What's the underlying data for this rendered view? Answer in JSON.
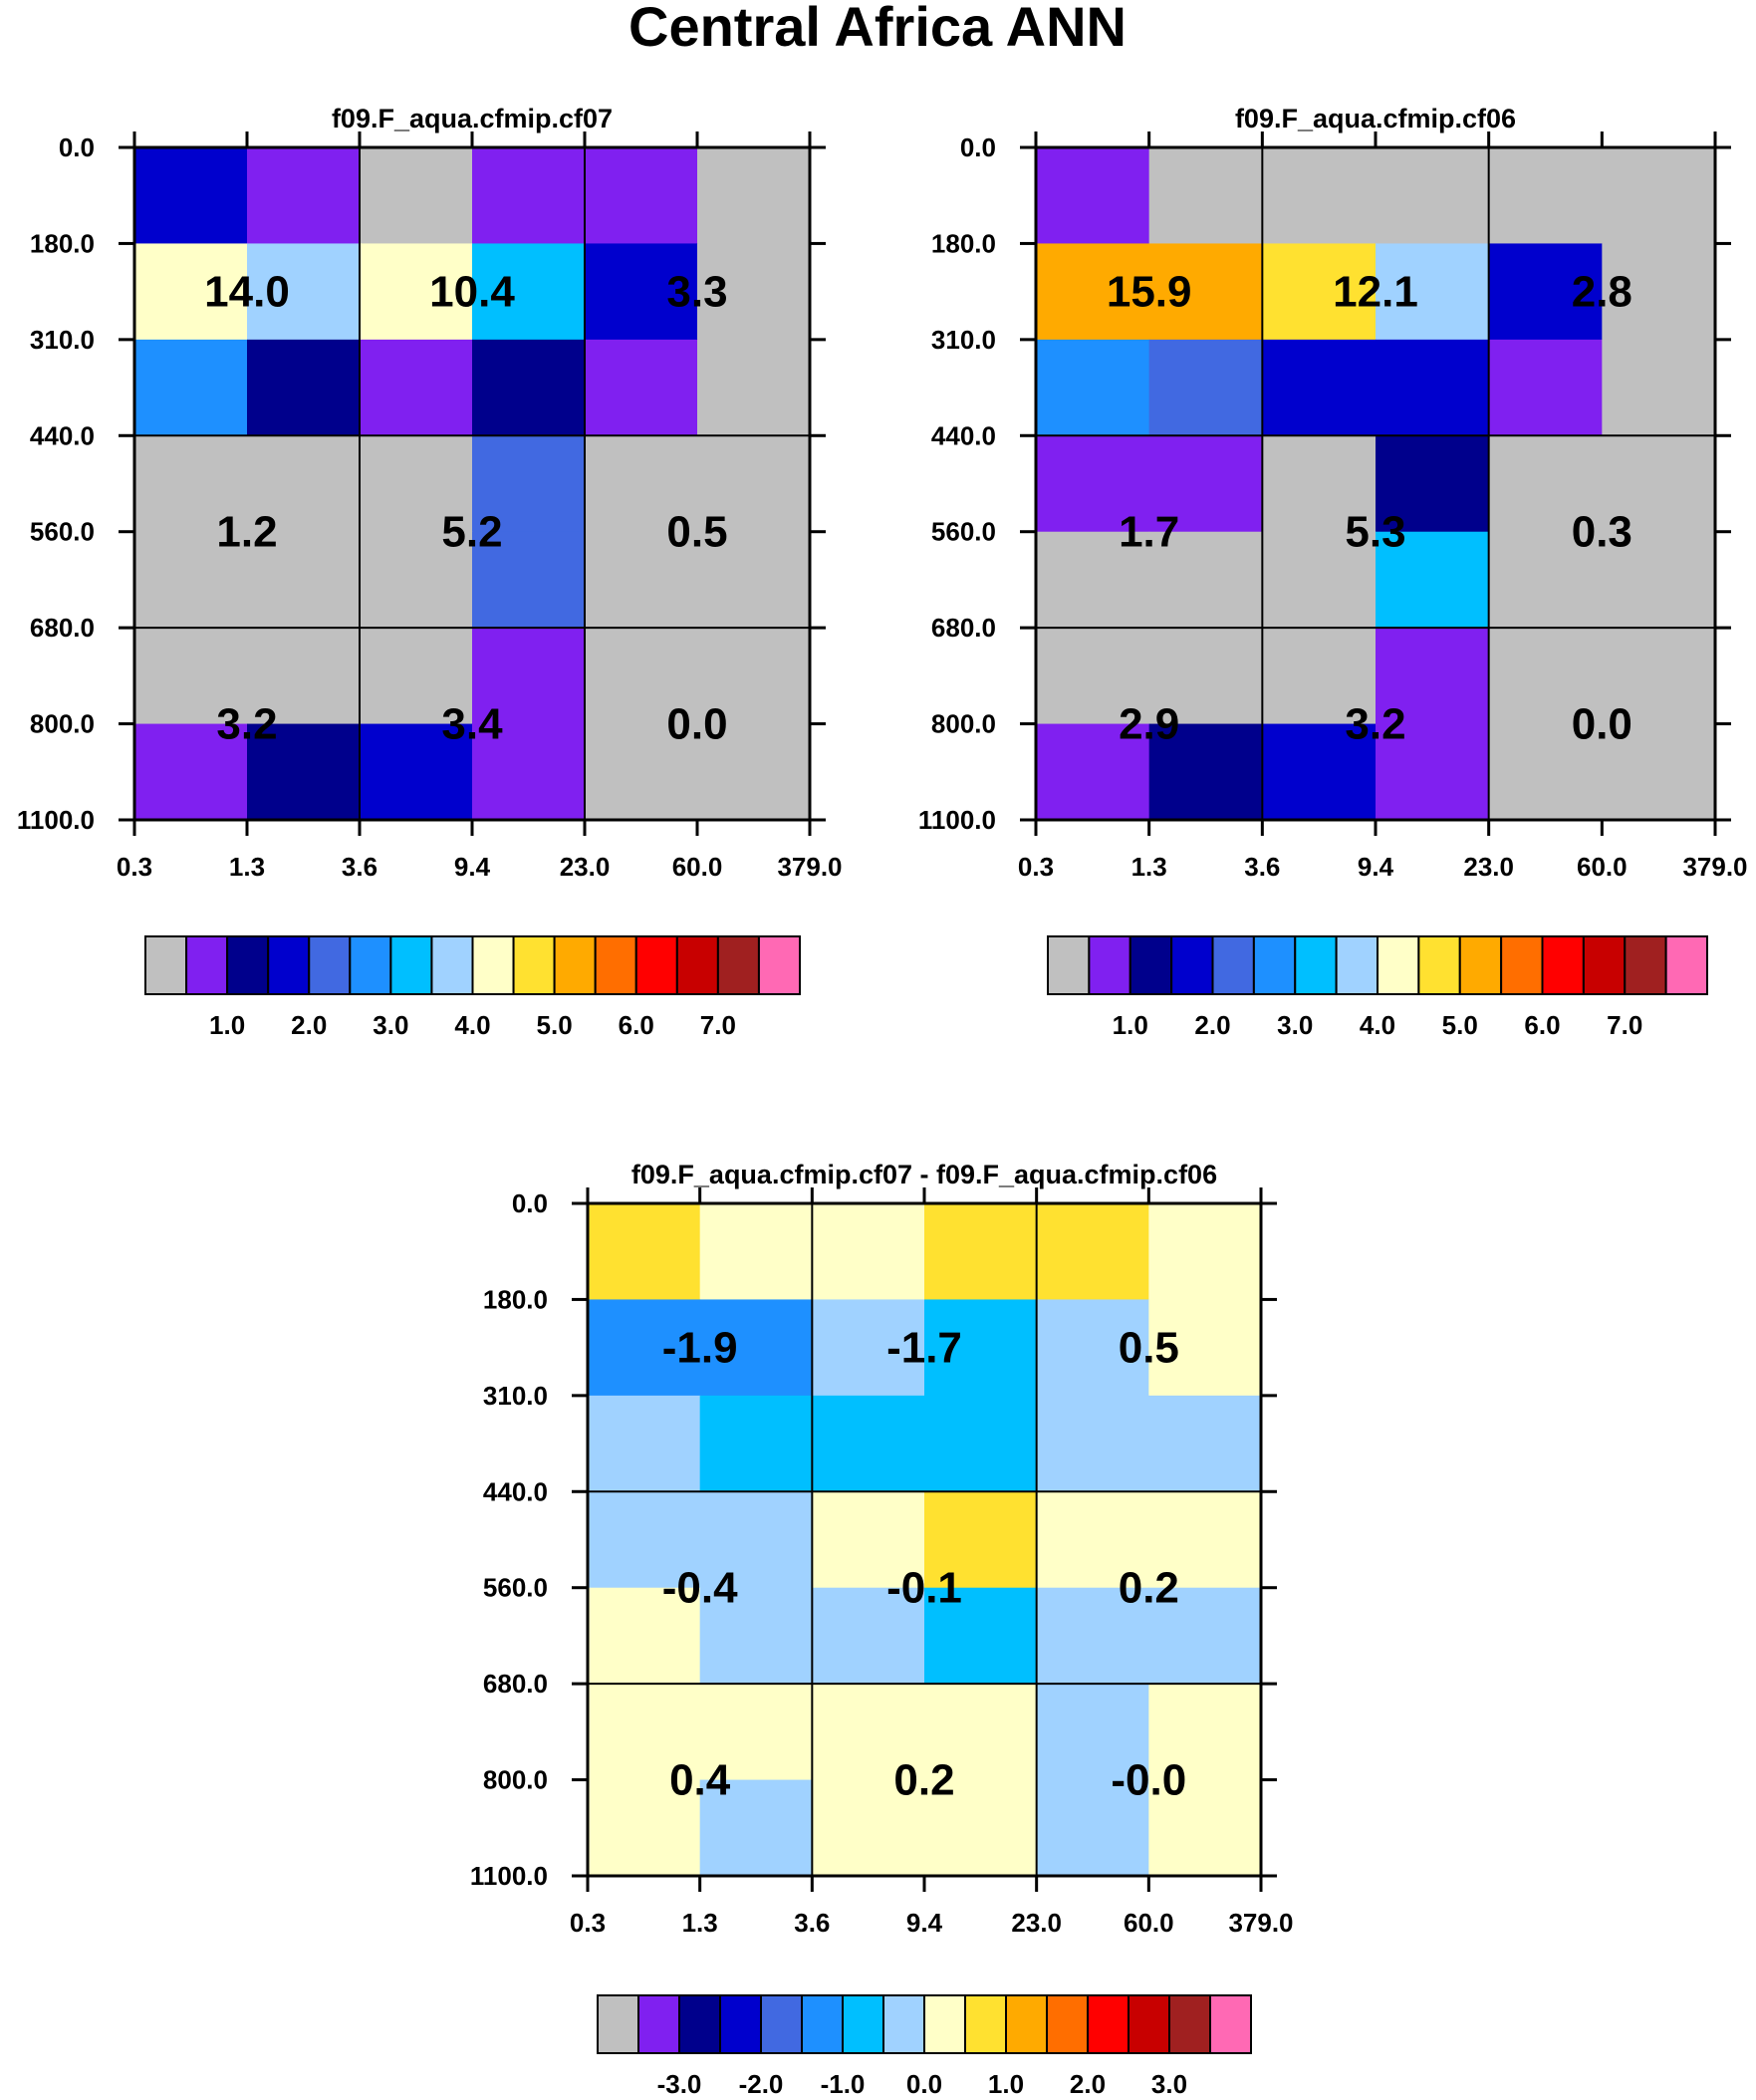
{
  "title": "Central Africa ANN",
  "colors": {
    "palette": [
      "#c0c0c0",
      "#8020f0",
      "#00008c",
      "#0000cd",
      "#4169e1",
      "#1e90ff",
      "#00bfff",
      "#a0d2ff",
      "#ffffc8",
      "#ffe130",
      "#ffaa00",
      "#ff6e00",
      "#ff0000",
      "#c80000",
      "#a02020",
      "#ff69b4"
    ]
  },
  "chart_data": [
    {
      "type": "heatmap",
      "name": "panel-cf07",
      "title": "f09.F_aqua.cfmip.cf07",
      "ylabels": [
        "0.0",
        "180.0",
        "310.0",
        "440.0",
        "560.0",
        "680.0",
        "800.0",
        "1100.0"
      ],
      "xlabels": [
        "0.3",
        "1.3",
        "3.6",
        "9.4",
        "23.0",
        "60.0",
        "379.0"
      ],
      "grid": [
        [
          0,
          1,
          2
        ],
        [
          0,
          1,
          2
        ]
      ],
      "cells": [
        [
          3,
          1,
          0,
          1,
          1,
          0
        ],
        [
          8,
          7,
          8,
          6,
          3,
          0
        ],
        [
          5,
          2,
          1,
          2,
          1,
          0
        ],
        [
          0,
          0,
          0,
          4,
          0,
          0
        ],
        [
          0,
          0,
          0,
          4,
          0,
          0
        ],
        [
          0,
          0,
          0,
          1,
          0,
          0
        ],
        [
          1,
          2,
          3,
          1,
          0,
          0
        ]
      ],
      "labels": [
        [
          "14.0",
          "10.4",
          "3.3"
        ],
        [
          "1.2",
          "5.2",
          "0.5"
        ],
        [
          "3.2",
          "3.4",
          "0.0"
        ]
      ],
      "colorbar": {
        "ticks": [
          "1.0",
          "2.0",
          "3.0",
          "4.0",
          "5.0",
          "6.0",
          "7.0"
        ],
        "boxes": 16
      }
    },
    {
      "type": "heatmap",
      "name": "panel-cf06",
      "title": "f09.F_aqua.cfmip.cf06",
      "ylabels": [
        "0.0",
        "180.0",
        "310.0",
        "440.0",
        "560.0",
        "680.0",
        "800.0",
        "1100.0"
      ],
      "xlabels": [
        "0.3",
        "1.3",
        "3.6",
        "9.4",
        "23.0",
        "60.0",
        "379.0"
      ],
      "cells": [
        [
          1,
          0,
          0,
          0,
          0,
          0
        ],
        [
          10,
          10,
          9,
          7,
          3,
          0
        ],
        [
          5,
          4,
          3,
          3,
          1,
          0
        ],
        [
          1,
          1,
          0,
          2,
          0,
          0
        ],
        [
          0,
          0,
          0,
          6,
          0,
          0
        ],
        [
          0,
          0,
          0,
          1,
          0,
          0
        ],
        [
          1,
          2,
          3,
          1,
          0,
          0
        ]
      ],
      "labels": [
        [
          "15.9",
          "12.1",
          "2.8"
        ],
        [
          "1.7",
          "5.3",
          "0.3"
        ],
        [
          "2.9",
          "3.2",
          "0.0"
        ]
      ],
      "colorbar": {
        "ticks": [
          "1.0",
          "2.0",
          "3.0",
          "4.0",
          "5.0",
          "6.0",
          "7.0"
        ],
        "boxes": 16
      }
    },
    {
      "type": "heatmap",
      "name": "panel-diff",
      "title": "f09.F_aqua.cfmip.cf07 - f09.F_aqua.cfmip.cf06",
      "ylabels": [
        "0.0",
        "180.0",
        "310.0",
        "440.0",
        "560.0",
        "680.0",
        "800.0",
        "1100.0"
      ],
      "xlabels": [
        "0.3",
        "1.3",
        "3.6",
        "9.4",
        "23.0",
        "60.0",
        "379.0"
      ],
      "cells": [
        [
          9,
          8,
          8,
          9,
          9,
          8
        ],
        [
          5,
          5,
          7,
          6,
          7,
          8
        ],
        [
          7,
          6,
          6,
          6,
          7,
          7
        ],
        [
          7,
          7,
          8,
          9,
          8,
          8
        ],
        [
          8,
          7,
          7,
          6,
          7,
          7
        ],
        [
          8,
          8,
          8,
          8,
          7,
          8
        ],
        [
          8,
          7,
          8,
          8,
          7,
          8
        ]
      ],
      "labels": [
        [
          "-1.9",
          "-1.7",
          "0.5"
        ],
        [
          "-0.4",
          "-0.1",
          "0.2"
        ],
        [
          "0.4",
          "0.2",
          "-0.0"
        ]
      ],
      "colorbar": {
        "ticks": [
          "-3.0",
          "-2.0",
          "-1.0",
          "0.0",
          "1.0",
          "2.0",
          "3.0"
        ],
        "boxes": 16
      }
    }
  ]
}
